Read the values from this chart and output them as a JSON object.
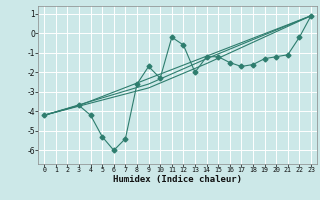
{
  "xlabel": "Humidex (Indice chaleur)",
  "background_color": "#cce8e8",
  "line_color": "#2e7d6e",
  "grid_color": "#ffffff",
  "xlim": [
    -0.5,
    23.5
  ],
  "ylim": [
    -6.7,
    1.4
  ],
  "yticks": [
    1,
    0,
    -1,
    -2,
    -3,
    -4,
    -5,
    -6
  ],
  "xticks": [
    0,
    1,
    2,
    3,
    4,
    5,
    6,
    7,
    8,
    9,
    10,
    11,
    12,
    13,
    14,
    15,
    16,
    17,
    18,
    19,
    20,
    21,
    22,
    23
  ],
  "curve1_x": [
    0,
    3,
    4,
    5,
    6,
    7,
    8,
    9,
    10,
    11,
    12,
    13,
    14,
    15,
    16,
    17,
    18,
    19,
    20,
    21,
    22,
    23
  ],
  "curve1_y": [
    -4.2,
    -3.7,
    -4.2,
    -5.3,
    -6.0,
    -5.4,
    -2.6,
    -1.7,
    -2.3,
    -0.2,
    -0.6,
    -2.0,
    -1.2,
    -1.2,
    -1.5,
    -1.7,
    -1.6,
    -1.3,
    -1.2,
    -1.1,
    -0.2,
    0.9
  ],
  "curve2_x": [
    0,
    3,
    23
  ],
  "curve2_y": [
    -4.2,
    -3.7,
    0.9
  ],
  "curve3_x": [
    0,
    9,
    14,
    23
  ],
  "curve3_y": [
    -4.2,
    -2.8,
    -1.55,
    0.9
  ],
  "curve4_x": [
    0,
    9,
    14,
    23
  ],
  "curve4_y": [
    -4.2,
    -2.6,
    -1.3,
    0.9
  ]
}
